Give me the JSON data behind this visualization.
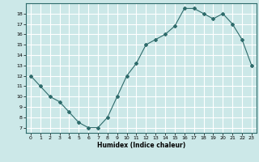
{
  "x": [
    0,
    1,
    2,
    3,
    4,
    5,
    6,
    7,
    8,
    9,
    10,
    11,
    12,
    13,
    14,
    15,
    16,
    17,
    18,
    19,
    20,
    21,
    22,
    23
  ],
  "y": [
    12,
    11,
    10,
    9.5,
    8.5,
    7.5,
    7.0,
    7.0,
    8.0,
    10.0,
    12.0,
    13.2,
    15.0,
    15.5,
    16.0,
    16.8,
    18.5,
    18.5,
    18.0,
    17.5,
    18.0,
    17.0,
    15.5,
    13.0
  ],
  "xlabel": "Humidex (Indice chaleur)",
  "ylim": [
    6.5,
    19
  ],
  "xlim": [
    -0.5,
    23.5
  ],
  "yticks": [
    7,
    8,
    9,
    10,
    11,
    12,
    13,
    14,
    15,
    16,
    17,
    18
  ],
  "xticks": [
    0,
    1,
    2,
    3,
    4,
    5,
    6,
    7,
    8,
    9,
    10,
    11,
    12,
    13,
    14,
    15,
    16,
    17,
    18,
    19,
    20,
    21,
    22,
    23
  ],
  "line_color": "#2e6b6b",
  "marker_color": "#2e6b6b",
  "bg_color": "#cce8e8",
  "grid_major_color": "#ffffff",
  "grid_minor_color": "#c4d8d8",
  "label_color": "#000000",
  "tick_color": "#000000",
  "spine_color": "#2e6b6b"
}
